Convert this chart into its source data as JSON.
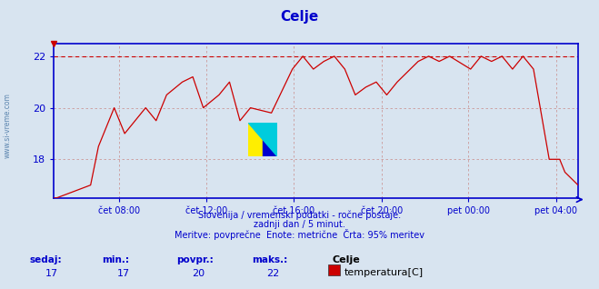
{
  "title": "Celje",
  "bg_color": "#d8e4f0",
  "plot_bg_color": "#d8e4f0",
  "line_color": "#cc0000",
  "axis_color": "#0000cc",
  "grid_color": "#cc9999",
  "watermark_color": "#336699",
  "ylabel_text": "www.si-vreme.com",
  "footer_lines": [
    "Slovenija / vremenski podatki - ročne postaje.",
    "zadnji dan / 5 minut.",
    "Meritve: povprečne  Enote: metrične  Črta: 95% meritev"
  ],
  "bottom_labels": [
    "sedaj:",
    "min.:",
    "povpr.:",
    "maks.:"
  ],
  "bottom_values": [
    "17",
    "17",
    "20",
    "22"
  ],
  "bottom_series_name": "Celje",
  "bottom_series_label": "temperatura[C]",
  "ymin": 16.5,
  "ymax": 22.5,
  "yticks": [
    18,
    20,
    22
  ],
  "xtick_labels": [
    "čet 08:00",
    "čet 12:00",
    "čet 16:00",
    "čet 20:00",
    "pet 00:00",
    "pet 04:00"
  ],
  "xtick_positions": [
    0.125,
    0.291,
    0.458,
    0.625,
    0.791,
    0.958
  ],
  "max_line_y": 22,
  "time_data": [
    0.0,
    0.005,
    0.005,
    0.07,
    0.07,
    0.085,
    0.085,
    0.105,
    0.105,
    0.115,
    0.115,
    0.135,
    0.135,
    0.155,
    0.155,
    0.175,
    0.175,
    0.195,
    0.195,
    0.215,
    0.215,
    0.245,
    0.245,
    0.265,
    0.265,
    0.285,
    0.285,
    0.315,
    0.315,
    0.335,
    0.335,
    0.355,
    0.355,
    0.375,
    0.375,
    0.415,
    0.415,
    0.455,
    0.455,
    0.475,
    0.475,
    0.495,
    0.495,
    0.515,
    0.515,
    0.535,
    0.535,
    0.555,
    0.555,
    0.575,
    0.575,
    0.595,
    0.595,
    0.615,
    0.615,
    0.635,
    0.635,
    0.655,
    0.655,
    0.695,
    0.695,
    0.715,
    0.715,
    0.735,
    0.735,
    0.755,
    0.755,
    0.795,
    0.795,
    0.815,
    0.815,
    0.835,
    0.835,
    0.855,
    0.855,
    0.875,
    0.875,
    0.895,
    0.895,
    0.915,
    0.915,
    0.945,
    0.945,
    0.965,
    0.965,
    0.975,
    0.975,
    1.0
  ],
  "temp_data": [
    16.5,
    16.5,
    16.5,
    17.0,
    17.0,
    18.5,
    18.5,
    19.5,
    19.5,
    20.0,
    20.0,
    19.0,
    19.0,
    19.5,
    19.5,
    20.0,
    20.0,
    19.5,
    19.5,
    20.5,
    20.5,
    21.0,
    21.0,
    21.2,
    21.2,
    20.0,
    20.0,
    20.5,
    20.5,
    21.0,
    21.0,
    19.5,
    19.5,
    20.0,
    20.0,
    19.8,
    19.8,
    21.5,
    21.5,
    22.0,
    22.0,
    21.5,
    21.5,
    21.8,
    21.8,
    22.0,
    22.0,
    21.5,
    21.5,
    20.5,
    20.5,
    20.8,
    20.8,
    21.0,
    21.0,
    20.5,
    20.5,
    21.0,
    21.0,
    21.8,
    21.8,
    22.0,
    22.0,
    21.8,
    21.8,
    22.0,
    22.0,
    21.5,
    21.5,
    22.0,
    22.0,
    21.8,
    21.8,
    22.0,
    22.0,
    21.5,
    21.5,
    22.0,
    22.0,
    21.5,
    21.5,
    18.0,
    18.0,
    18.0,
    18.0,
    17.5,
    17.5,
    17.0
  ]
}
